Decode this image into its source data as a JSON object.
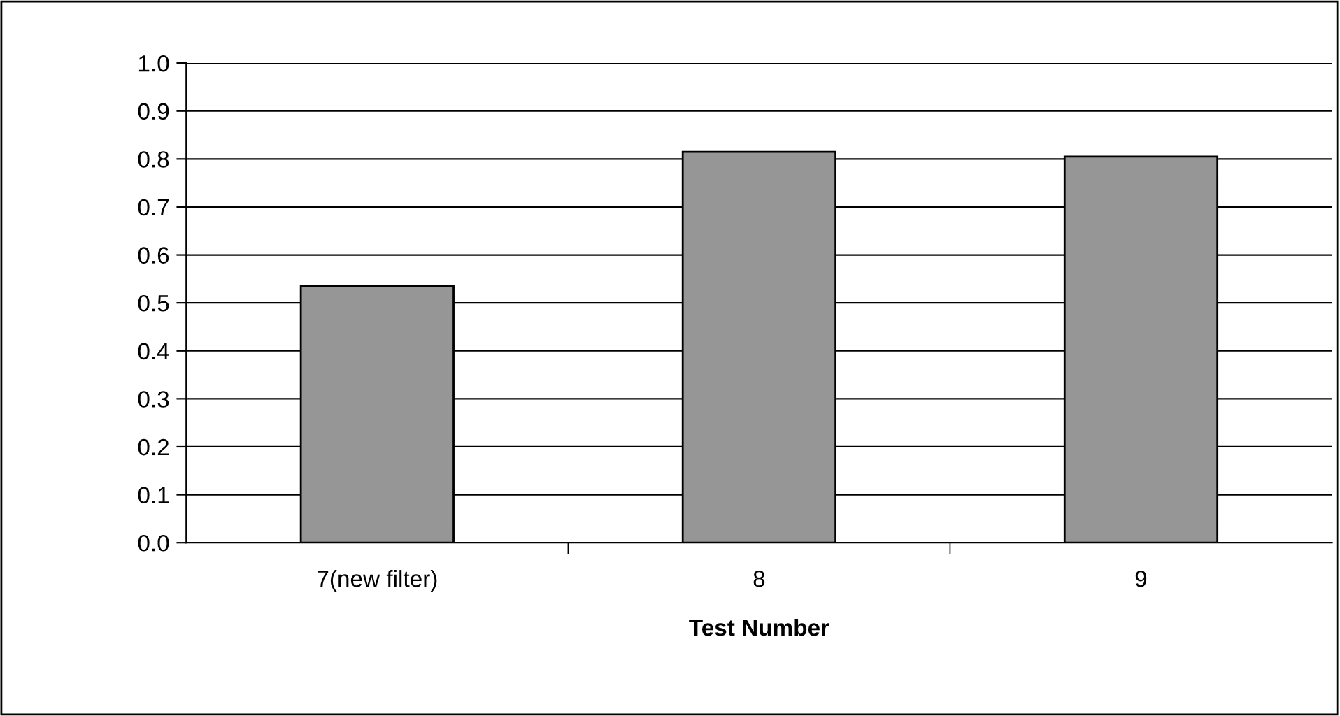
{
  "chart_data": {
    "type": "bar",
    "xlabel": "Test Number",
    "categories": [
      "7(new filter)",
      "8",
      "9"
    ],
    "values": [
      0.535,
      0.815,
      0.805
    ],
    "color": "#969696",
    "ylim": [
      0.0,
      1.0
    ],
    "yticks": [
      {
        "value": 0.0,
        "label": "0.0"
      },
      {
        "value": 0.1,
        "label": "0.1"
      },
      {
        "value": 0.2,
        "label": "0.2"
      },
      {
        "value": 0.3,
        "label": "0.3"
      },
      {
        "value": 0.4,
        "label": "0.4"
      },
      {
        "value": 0.5,
        "label": "0.5"
      },
      {
        "value": 0.6,
        "label": "0.6"
      },
      {
        "value": 0.7,
        "label": "0.7"
      },
      {
        "value": 0.8,
        "label": "0.8"
      },
      {
        "value": 0.9,
        "label": "0.9"
      },
      {
        "value": 1.0,
        "label": "1.0"
      }
    ],
    "grid": "y"
  }
}
